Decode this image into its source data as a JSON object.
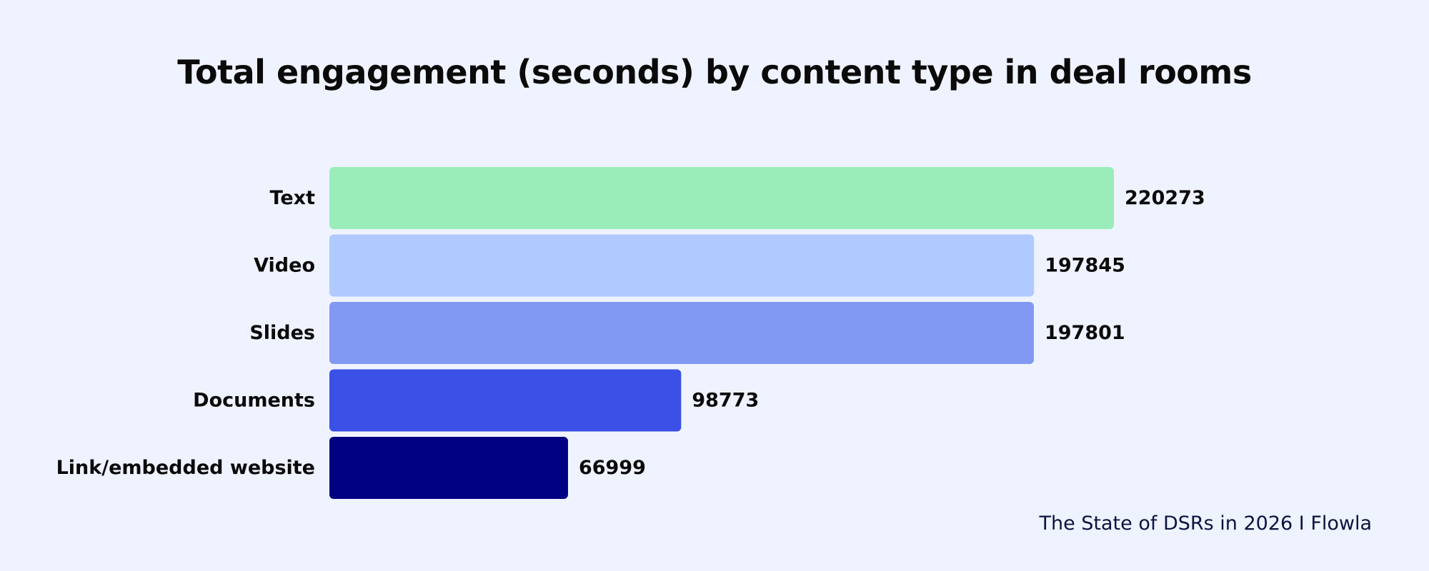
{
  "chart_data": {
    "type": "bar",
    "orientation": "horizontal",
    "title": "Total engagement (seconds) by content type in deal rooms",
    "xlabel": "",
    "ylabel": "",
    "categories": [
      "Text",
      "Video",
      "Slides",
      "Documents",
      "Link/embedded website"
    ],
    "values": [
      220273,
      197845,
      197801,
      98773,
      66999
    ],
    "colors": [
      "#9AEDB9",
      "#B0C9FF",
      "#8199F2",
      "#3A50E6",
      "#000082"
    ],
    "xlim": [
      0,
      220273
    ],
    "grid": false,
    "legend": "none"
  },
  "source": "The State of DSRs in 2026 I Flowla"
}
